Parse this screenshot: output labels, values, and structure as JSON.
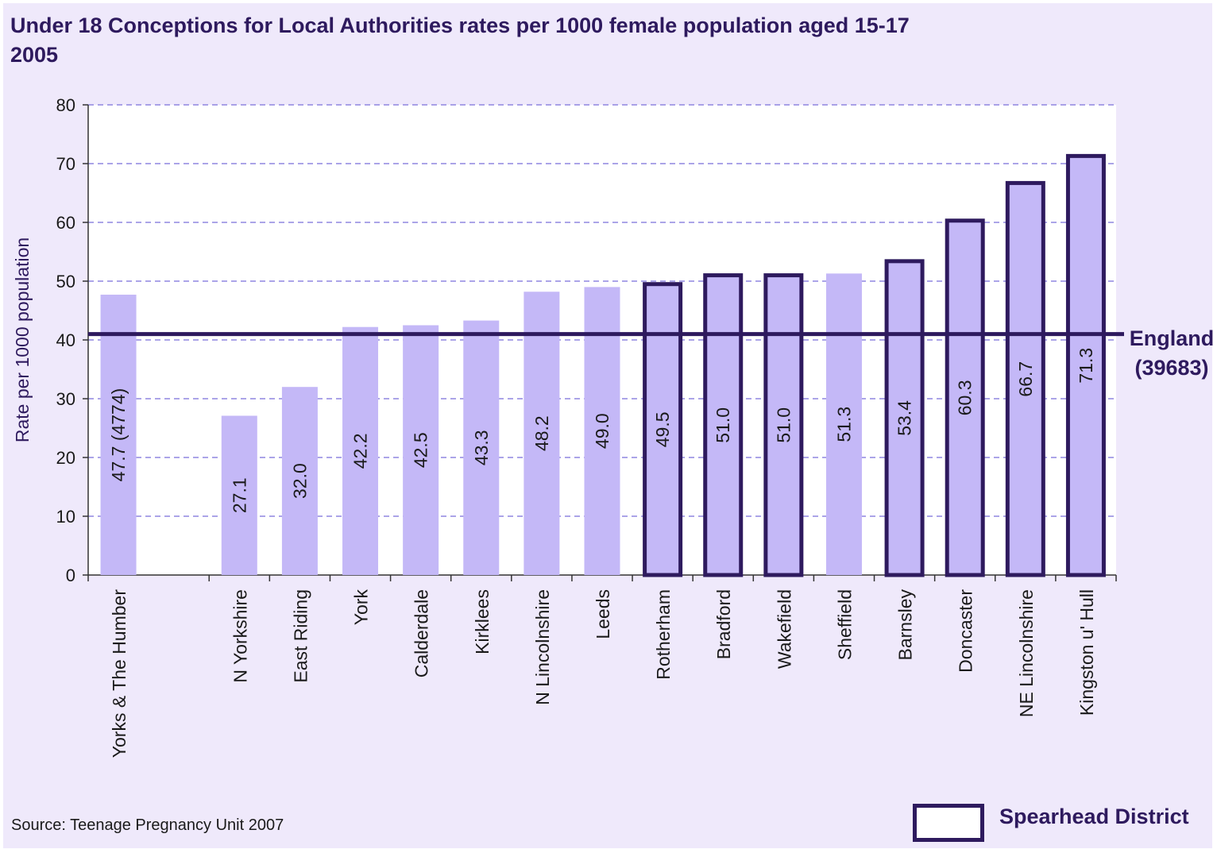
{
  "title_line1": "Under 18 Conceptions for Local Authorities rates per 1000 female population aged 15-17",
  "title_line2": "2005",
  "source": "Source: Teenage Pregnancy Unit 2007",
  "legend_label": "Spearhead District",
  "reference_line": {
    "label": "England",
    "sublabel": "(39683)",
    "value": 41
  },
  "colors": {
    "background": "#efe9fb",
    "plot_area": "#ffffff",
    "bar_fill": "#c4b8f7",
    "outline": "#2e1a5e",
    "gridline": "#8f86e0"
  },
  "chart_data": {
    "type": "bar",
    "ylabel": "Rate per 1000 population",
    "ylim": [
      0,
      80
    ],
    "yticks": [
      0,
      10,
      20,
      30,
      40,
      50,
      60,
      70,
      80
    ],
    "grid": true,
    "categories": [
      "Yorks & The Humber",
      "",
      "N Yorkshire",
      "East Riding",
      "York",
      "Calderdale",
      "Kirklees",
      "N Lincolnshire",
      "Leeds",
      "Rotherham",
      "Bradford",
      "Wakefield",
      "Sheffield",
      "Barnsley",
      "Doncaster",
      "NE Lincolnshire",
      "Kingston u' Hull"
    ],
    "values": [
      47.7,
      null,
      27.1,
      32.0,
      42.2,
      42.5,
      43.3,
      48.2,
      49.0,
      49.5,
      51.0,
      51.0,
      51.3,
      53.4,
      60.3,
      66.7,
      71.3
    ],
    "data_labels": [
      "47.7 (4774)",
      "",
      "27.1",
      "32.0",
      "42.2",
      "42.5",
      "43.3",
      "48.2",
      "49.0",
      "49.5",
      "51.0",
      "51.0",
      "51.3",
      "53.4",
      "60.3",
      "66.7",
      "71.3"
    ],
    "spearhead": [
      false,
      false,
      false,
      false,
      false,
      false,
      false,
      false,
      false,
      true,
      true,
      true,
      false,
      true,
      true,
      true,
      true
    ]
  }
}
